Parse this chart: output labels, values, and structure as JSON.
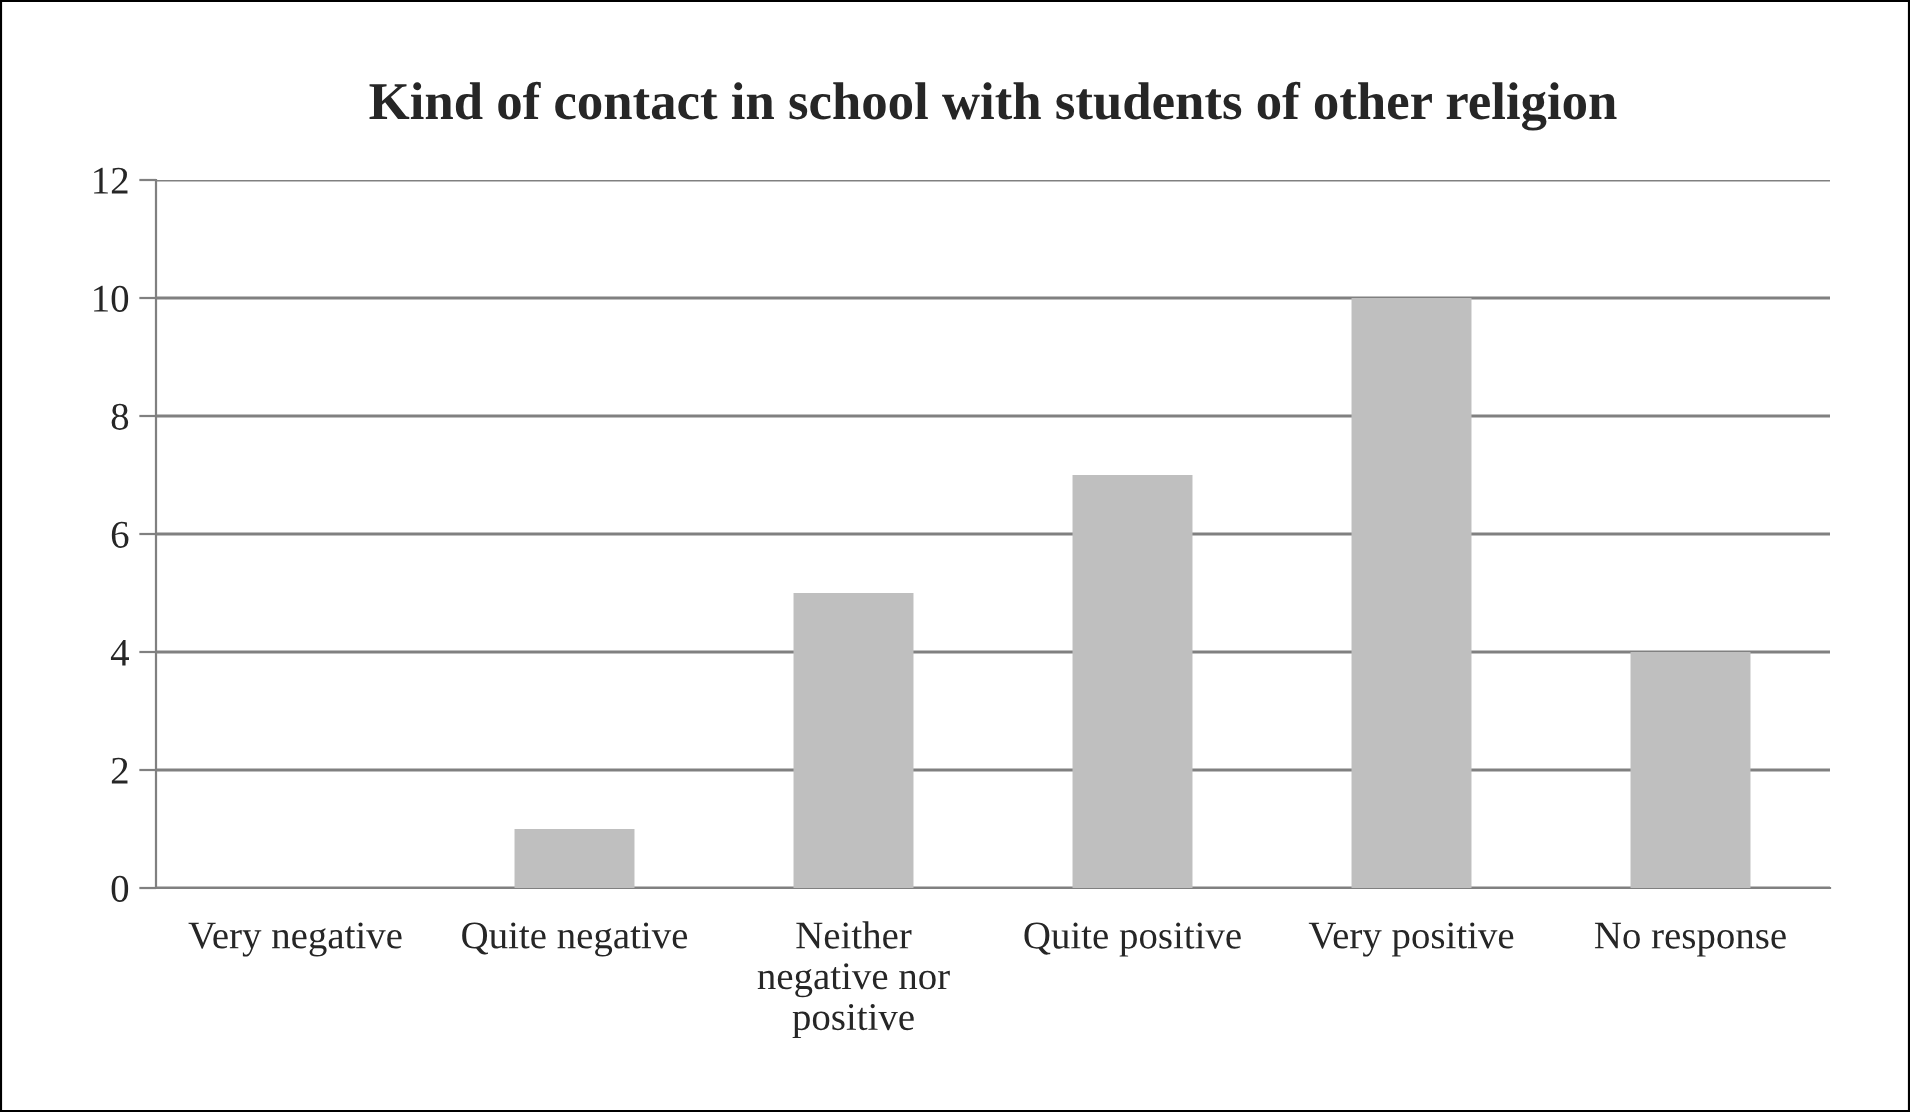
{
  "chart_data": {
    "type": "bar",
    "title": "Kind of contact in school with students of other religion",
    "categories": [
      "Very negative",
      "Quite negative",
      "Neither\nnegative nor\npositive",
      "Quite positive",
      "Very positive",
      "No response"
    ],
    "values": [
      0,
      1,
      5,
      7,
      10,
      4
    ],
    "color": "#bfbfbf",
    "ylim": [
      0,
      12
    ],
    "yticks": [
      0,
      2,
      4,
      6,
      8,
      10,
      12
    ],
    "grid": "y"
  }
}
